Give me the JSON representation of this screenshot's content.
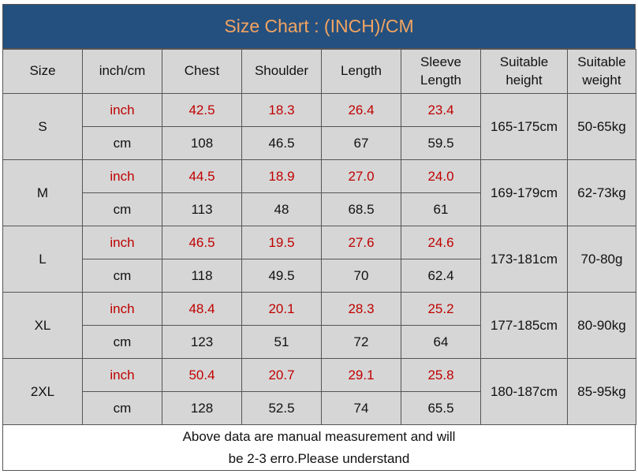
{
  "title": "Size Chart : (INCH)/CM",
  "table": {
    "header": [
      "Size",
      "inch/cm",
      "Chest",
      "Shoulder",
      "Length",
      "Sleeve Length",
      "Suitable height",
      "Suitable weight"
    ],
    "rows": [
      {
        "size": "S",
        "inch": [
          "inch",
          "42.5",
          "18.3",
          "26.4",
          "23.4"
        ],
        "cm": [
          "cm",
          "108",
          "46.5",
          "67",
          "59.5"
        ],
        "height": "165-175cm",
        "weight": "50-65kg"
      },
      {
        "size": "M",
        "inch": [
          "inch",
          "44.5",
          "18.9",
          "27.0",
          "24.0"
        ],
        "cm": [
          "cm",
          "113",
          "48",
          "68.5",
          "61"
        ],
        "height": "169-179cm",
        "weight": "62-73kg"
      },
      {
        "size": "L",
        "inch": [
          "inch",
          "46.5",
          "19.5",
          "27.6",
          "24.6"
        ],
        "cm": [
          "cm",
          "118",
          "49.5",
          "70",
          "62.4"
        ],
        "height": "173-181cm",
        "weight": "70-80g"
      },
      {
        "size": "XL",
        "inch": [
          "inch",
          "48.4",
          "20.1",
          "28.3",
          "25.2"
        ],
        "cm": [
          "cm",
          "123",
          "51",
          "72",
          "64"
        ],
        "height": "177-185cm",
        "weight": "80-90kg"
      },
      {
        "size": "2XL",
        "inch": [
          "inch",
          "50.4",
          "20.7",
          "29.1",
          "25.8"
        ],
        "cm": [
          "cm",
          "128",
          "52.5",
          "74",
          "65.5"
        ],
        "height": "180-187cm",
        "weight": "85-95kg"
      }
    ]
  },
  "footer": [
    "Above data are manual measurement and will",
    "be 2-3 erro.Please understand"
  ]
}
